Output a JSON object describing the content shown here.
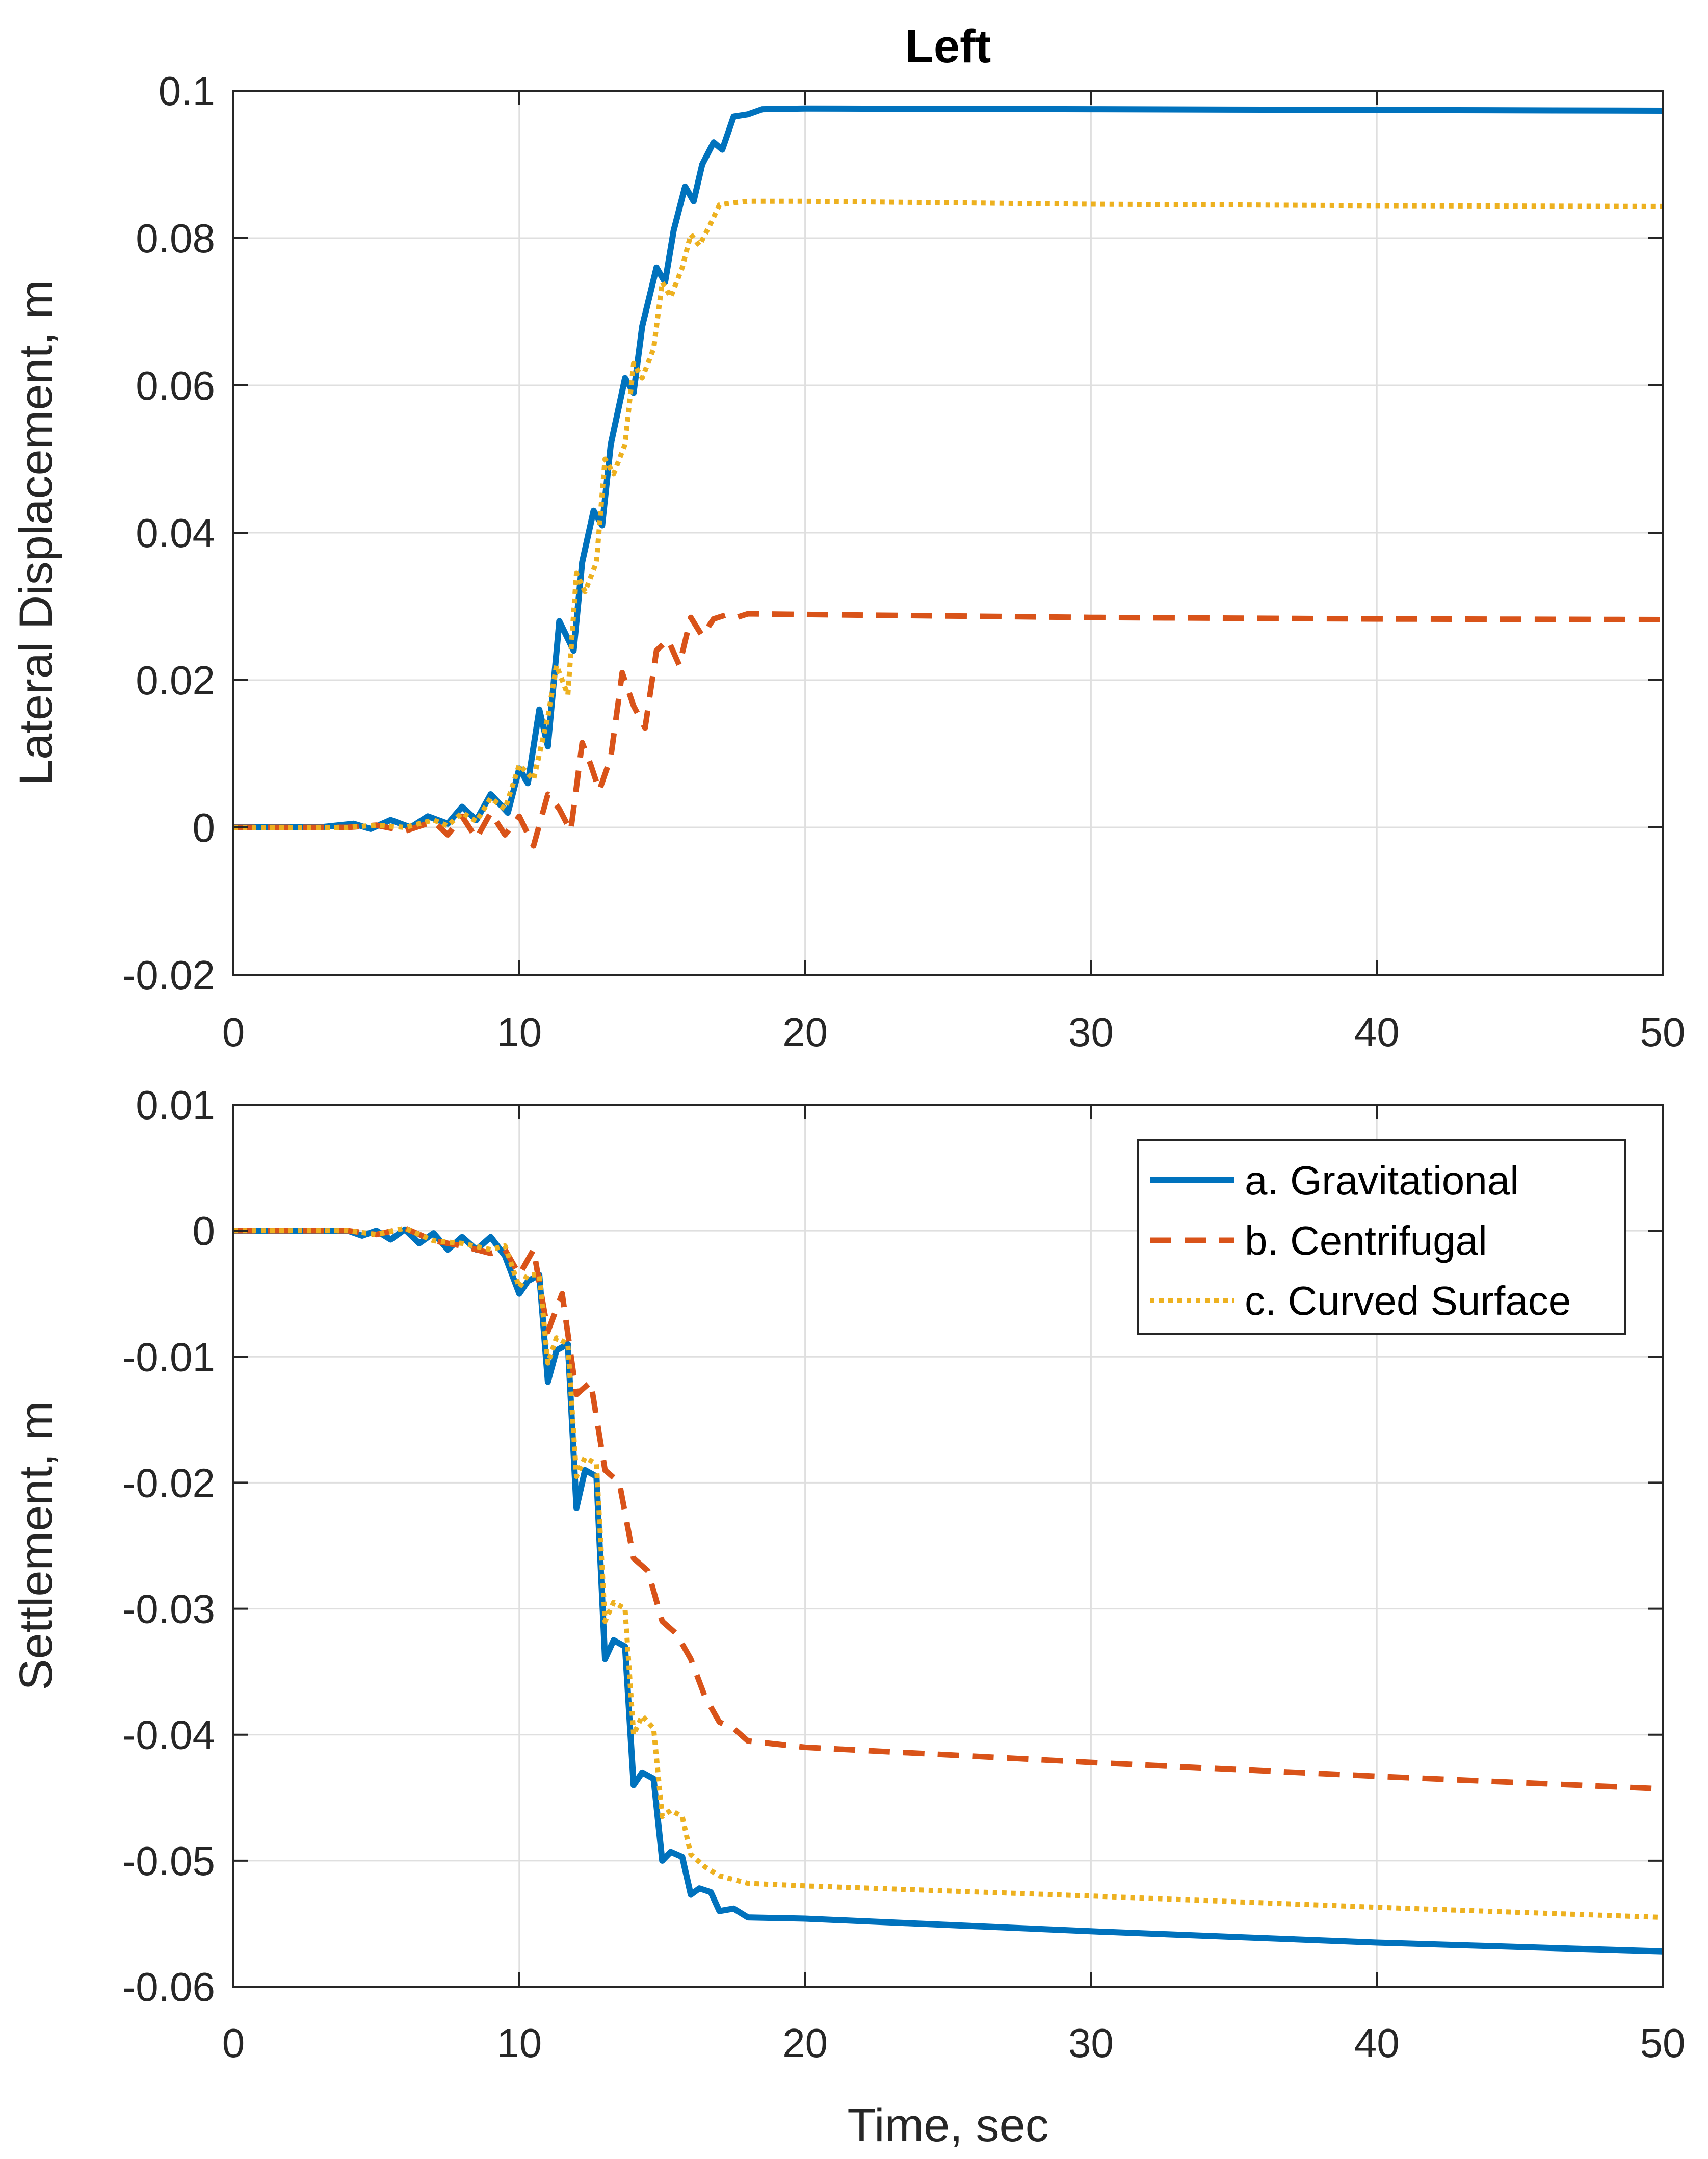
{
  "figure_title": "Left",
  "colors": {
    "gravitational": "#0072BD",
    "centrifugal": "#D95319",
    "curved": "#EDB120"
  },
  "chart_data": [
    {
      "type": "line",
      "title": "Left",
      "xlabel": "",
      "ylabel": "Lateral Displacement, m",
      "xlim": [
        0,
        50
      ],
      "ylim": [
        -0.02,
        0.1
      ],
      "xticks": [
        "0",
        "10",
        "20",
        "30",
        "40",
        "50"
      ],
      "yticks": [
        "-0.02",
        "0",
        "0.02",
        "0.04",
        "0.06",
        "0.08",
        "0.1"
      ],
      "grid": true,
      "series": [
        {
          "name": "a. Gravitational",
          "style": "solid",
          "x": [
            0,
            3,
            4.2,
            4.8,
            5.5,
            6.2,
            6.8,
            7.5,
            8,
            8.5,
            9,
            9.6,
            10,
            10.3,
            10.7,
            11,
            11.4,
            11.9,
            12.2,
            12.6,
            12.9,
            13.2,
            13.7,
            14,
            14.3,
            14.8,
            15.1,
            15.4,
            15.8,
            16.1,
            16.4,
            16.8,
            17.1,
            17.5,
            18,
            18.5,
            20,
            30,
            40,
            50
          ],
          "y": [
            0,
            0,
            0.0005,
            -0.0002,
            0.001,
            0,
            0.0015,
            0.0005,
            0.0028,
            0.001,
            0.0045,
            0.002,
            0.008,
            0.006,
            0.016,
            0.011,
            0.028,
            0.024,
            0.036,
            0.043,
            0.041,
            0.052,
            0.061,
            0.059,
            0.068,
            0.076,
            0.074,
            0.081,
            0.087,
            0.085,
            0.09,
            0.093,
            0.092,
            0.0965,
            0.0968,
            0.0975,
            0.0976,
            0.0975,
            0.0974,
            0.0973
          ]
        },
        {
          "name": "b. Centrifugal",
          "style": "dashed",
          "x": [
            0,
            4,
            5,
            6,
            7,
            7.5,
            8,
            8.5,
            9,
            9.5,
            10,
            10.5,
            11,
            11.4,
            11.8,
            12.2,
            12.5,
            12.8,
            13.2,
            13.6,
            14,
            14.4,
            14.8,
            15.2,
            15.6,
            16,
            16.4,
            16.8,
            17.2,
            17.6,
            18,
            20,
            30,
            40,
            50
          ],
          "y": [
            0,
            0,
            0.0003,
            -0.0005,
            0.0008,
            -0.001,
            0.0015,
            -0.0015,
            0.002,
            -0.001,
            0.0015,
            -0.0025,
            0.0045,
            0.0025,
            -0.0005,
            0.0115,
            0.0085,
            0.005,
            0.0095,
            0.021,
            0.0165,
            0.0135,
            0.024,
            0.0255,
            0.022,
            0.0285,
            0.026,
            0.0283,
            0.0288,
            0.0285,
            0.029,
            0.0289,
            0.0285,
            0.0283,
            0.0282
          ]
        },
        {
          "name": "c. Curved Surface",
          "style": "dotted",
          "x": [
            0,
            4,
            5,
            6,
            7,
            7.5,
            8,
            8.5,
            9,
            9.5,
            10,
            10.5,
            11,
            11.3,
            11.7,
            12,
            12.3,
            12.7,
            13,
            13.3,
            13.7,
            14,
            14.3,
            14.7,
            15,
            15.3,
            15.7,
            16,
            16.3,
            16.7,
            17,
            17.5,
            18,
            20,
            30,
            40,
            50
          ],
          "y": [
            0,
            0,
            0.0003,
            0,
            0.001,
            0.0002,
            0.002,
            0.0008,
            0.004,
            0.0025,
            0.0085,
            0.0065,
            0.015,
            0.022,
            0.018,
            0.0345,
            0.032,
            0.036,
            0.05,
            0.048,
            0.052,
            0.063,
            0.061,
            0.065,
            0.074,
            0.072,
            0.076,
            0.0805,
            0.079,
            0.082,
            0.0845,
            0.0848,
            0.085,
            0.085,
            0.0846,
            0.0844,
            0.0843
          ]
        }
      ]
    },
    {
      "type": "line",
      "title": "",
      "xlabel": "Time, sec",
      "ylabel": "Settlement, m",
      "xlim": [
        0,
        50
      ],
      "ylim": [
        -0.06,
        0.01
      ],
      "xticks": [
        "0",
        "10",
        "20",
        "30",
        "40",
        "50"
      ],
      "yticks": [
        "-0.06",
        "-0.05",
        "-0.04",
        "-0.03",
        "-0.02",
        "-0.01",
        "0",
        "0.01"
      ],
      "grid": true,
      "legend_position": "top-right",
      "legend": [
        "a. Gravitational",
        "b. Centrifugal",
        "c. Curved Surface"
      ],
      "series": [
        {
          "name": "a. Gravitational",
          "style": "solid",
          "x": [
            0,
            4,
            4.5,
            5,
            5.5,
            6,
            6.5,
            7,
            7.5,
            8,
            8.5,
            9,
            9.5,
            10,
            10.3,
            10.7,
            11,
            11.3,
            11.7,
            12,
            12.3,
            12.7,
            13,
            13.3,
            13.7,
            14,
            14.3,
            14.7,
            15,
            15.3,
            15.7,
            16,
            16.3,
            16.7,
            17,
            17.5,
            18,
            20,
            30,
            40,
            50
          ],
          "y": [
            0,
            0,
            -0.0004,
            0,
            -0.0007,
            0.0001,
            -0.001,
            -0.0002,
            -0.0015,
            -0.0005,
            -0.0015,
            -0.0005,
            -0.002,
            -0.005,
            -0.004,
            -0.0035,
            -0.012,
            -0.0095,
            -0.009,
            -0.022,
            -0.019,
            -0.0195,
            -0.034,
            -0.0325,
            -0.033,
            -0.044,
            -0.043,
            -0.0435,
            -0.05,
            -0.0493,
            -0.0497,
            -0.0527,
            -0.0522,
            -0.0525,
            -0.054,
            -0.0538,
            -0.0545,
            -0.0546,
            -0.0556,
            -0.0565,
            -0.0572
          ]
        },
        {
          "name": "b. Centrifugal",
          "style": "dashed",
          "x": [
            0,
            4,
            5,
            6,
            7,
            8,
            9,
            9.5,
            10,
            10.5,
            11,
            11.5,
            12,
            12.5,
            13,
            13.5,
            14,
            14.5,
            15,
            15.5,
            16,
            16.5,
            17,
            17.5,
            18,
            20,
            30,
            40,
            50
          ],
          "y": [
            0,
            0,
            -0.0003,
            0.0002,
            -0.0008,
            -0.0012,
            -0.0018,
            -0.0015,
            -0.0035,
            -0.0015,
            -0.008,
            -0.005,
            -0.013,
            -0.012,
            -0.019,
            -0.02,
            -0.026,
            -0.027,
            -0.031,
            -0.032,
            -0.034,
            -0.037,
            -0.039,
            -0.0395,
            -0.0405,
            -0.041,
            -0.0422,
            -0.0433,
            -0.0443
          ]
        },
        {
          "name": "c. Curved Surface",
          "style": "dotted",
          "x": [
            0,
            4,
            5,
            6,
            7,
            8,
            9,
            9.5,
            10,
            10.3,
            10.7,
            11,
            11.3,
            11.7,
            12,
            12.3,
            12.7,
            13,
            13.3,
            13.7,
            14,
            14.3,
            14.7,
            15,
            15.3,
            15.7,
            16,
            16.5,
            17,
            17.5,
            18,
            20,
            30,
            40,
            50
          ],
          "y": [
            0,
            0,
            -0.0003,
            0.0002,
            -0.0008,
            -0.001,
            -0.0015,
            -0.0012,
            -0.0045,
            -0.0035,
            -0.0035,
            -0.0105,
            -0.0085,
            -0.009,
            -0.0195,
            -0.018,
            -0.0185,
            -0.031,
            -0.0295,
            -0.03,
            -0.04,
            -0.0385,
            -0.0395,
            -0.0465,
            -0.046,
            -0.0465,
            -0.0495,
            -0.0505,
            -0.0512,
            -0.0515,
            -0.0518,
            -0.052,
            -0.0528,
            -0.0537,
            -0.0545
          ]
        }
      ]
    }
  ]
}
